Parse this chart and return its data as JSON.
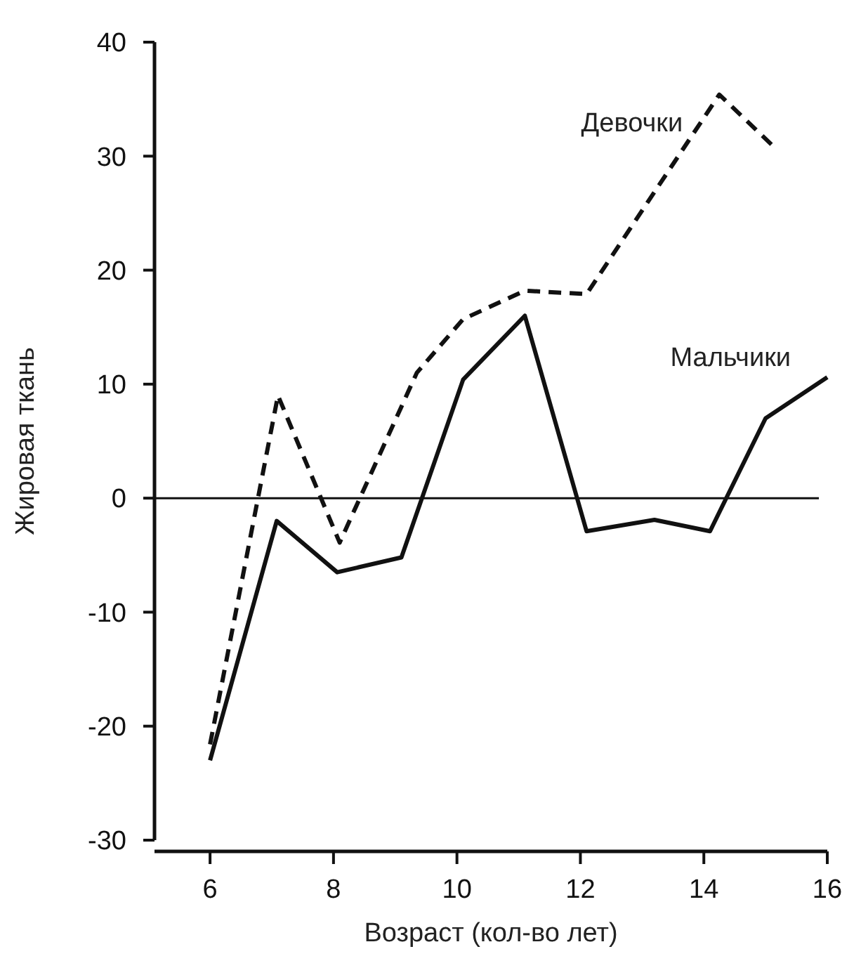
{
  "chart_data": {
    "type": "line",
    "xlabel": "Возраст (кол-во лет)",
    "ylabel": "Жировая ткань",
    "xlim": [
      5.1,
      16
    ],
    "xticks": [
      6,
      8,
      10,
      12,
      14,
      16
    ],
    "ylim": [
      -30,
      40
    ],
    "yticks": [
      -30,
      -20,
      -10,
      0,
      10,
      20,
      30,
      40
    ],
    "grid": false,
    "legend": false,
    "marker": "none",
    "ref_lines": [
      {
        "axis": "y",
        "value": 0,
        "color": "#111111",
        "line_style": "solid"
      }
    ],
    "series": [
      {
        "name": "Девочки",
        "color": "#111111",
        "line_style": "dashed",
        "x": [
          6,
          7.1,
          8.1,
          9.35,
          10.1,
          11.1,
          12.1,
          14.25,
          15.1
        ],
        "values": [
          -21.6,
          9,
          -3.9,
          11,
          15.7,
          18.2,
          17.9,
          35.4,
          31
        ]
      },
      {
        "name": "Мальчики",
        "color": "#111111",
        "line_style": "solid",
        "x": [
          6,
          7.08,
          8.06,
          9.1,
          10.1,
          11.1,
          12.1,
          13.2,
          14.1,
          15,
          16
        ],
        "values": [
          -23,
          -2,
          -6.5,
          -5.2,
          10.4,
          16,
          -2.9,
          -1.9,
          -2.9,
          7,
          10.6
        ]
      }
    ]
  }
}
